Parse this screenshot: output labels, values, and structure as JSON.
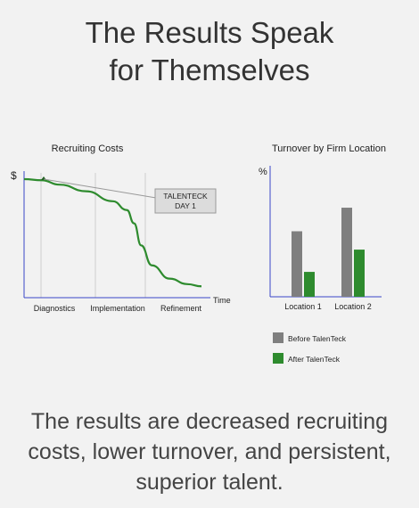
{
  "header": {
    "title_line1": "The Results Speak",
    "title_line2": "for Themselves"
  },
  "footer": {
    "line1": "The results are decreased recruiting",
    "line2": "costs, lower turnover, and persistent,",
    "line3": "superior talent."
  },
  "colors": {
    "green": "#2e8b2e",
    "gray": "#7f7f7f",
    "axis": "#3b47c8",
    "callout_bg": "#dcdcdc"
  },
  "chart_data": [
    {
      "type": "line",
      "title": "Recruiting Costs",
      "ylabel": "$",
      "xlabel": "Time",
      "phases": [
        "Diagnostics",
        "Implementation",
        "Refinement"
      ],
      "annotation": {
        "line1": "TALENTECK",
        "line2": "DAY 1"
      },
      "series": [
        {
          "x": [
            0,
            0.1,
            0.2,
            0.35,
            0.5,
            0.58,
            0.62,
            0.66,
            0.72,
            0.82,
            0.92,
            1.0
          ],
          "y": [
            1.0,
            0.99,
            0.95,
            0.89,
            0.8,
            0.72,
            0.6,
            0.4,
            0.22,
            0.1,
            0.05,
            0.03
          ]
        }
      ],
      "grid": true
    },
    {
      "type": "bar",
      "title": "Turnover  by Firm Location",
      "ylabel": "%",
      "categories": [
        "Location 1",
        "Location 2"
      ],
      "series": [
        {
          "name": "Before TalenTeck",
          "values": [
            50,
            68
          ]
        },
        {
          "name": "After TalenTeck",
          "values": [
            19,
            36
          ]
        }
      ],
      "ylim": [
        0,
        100
      ]
    }
  ]
}
